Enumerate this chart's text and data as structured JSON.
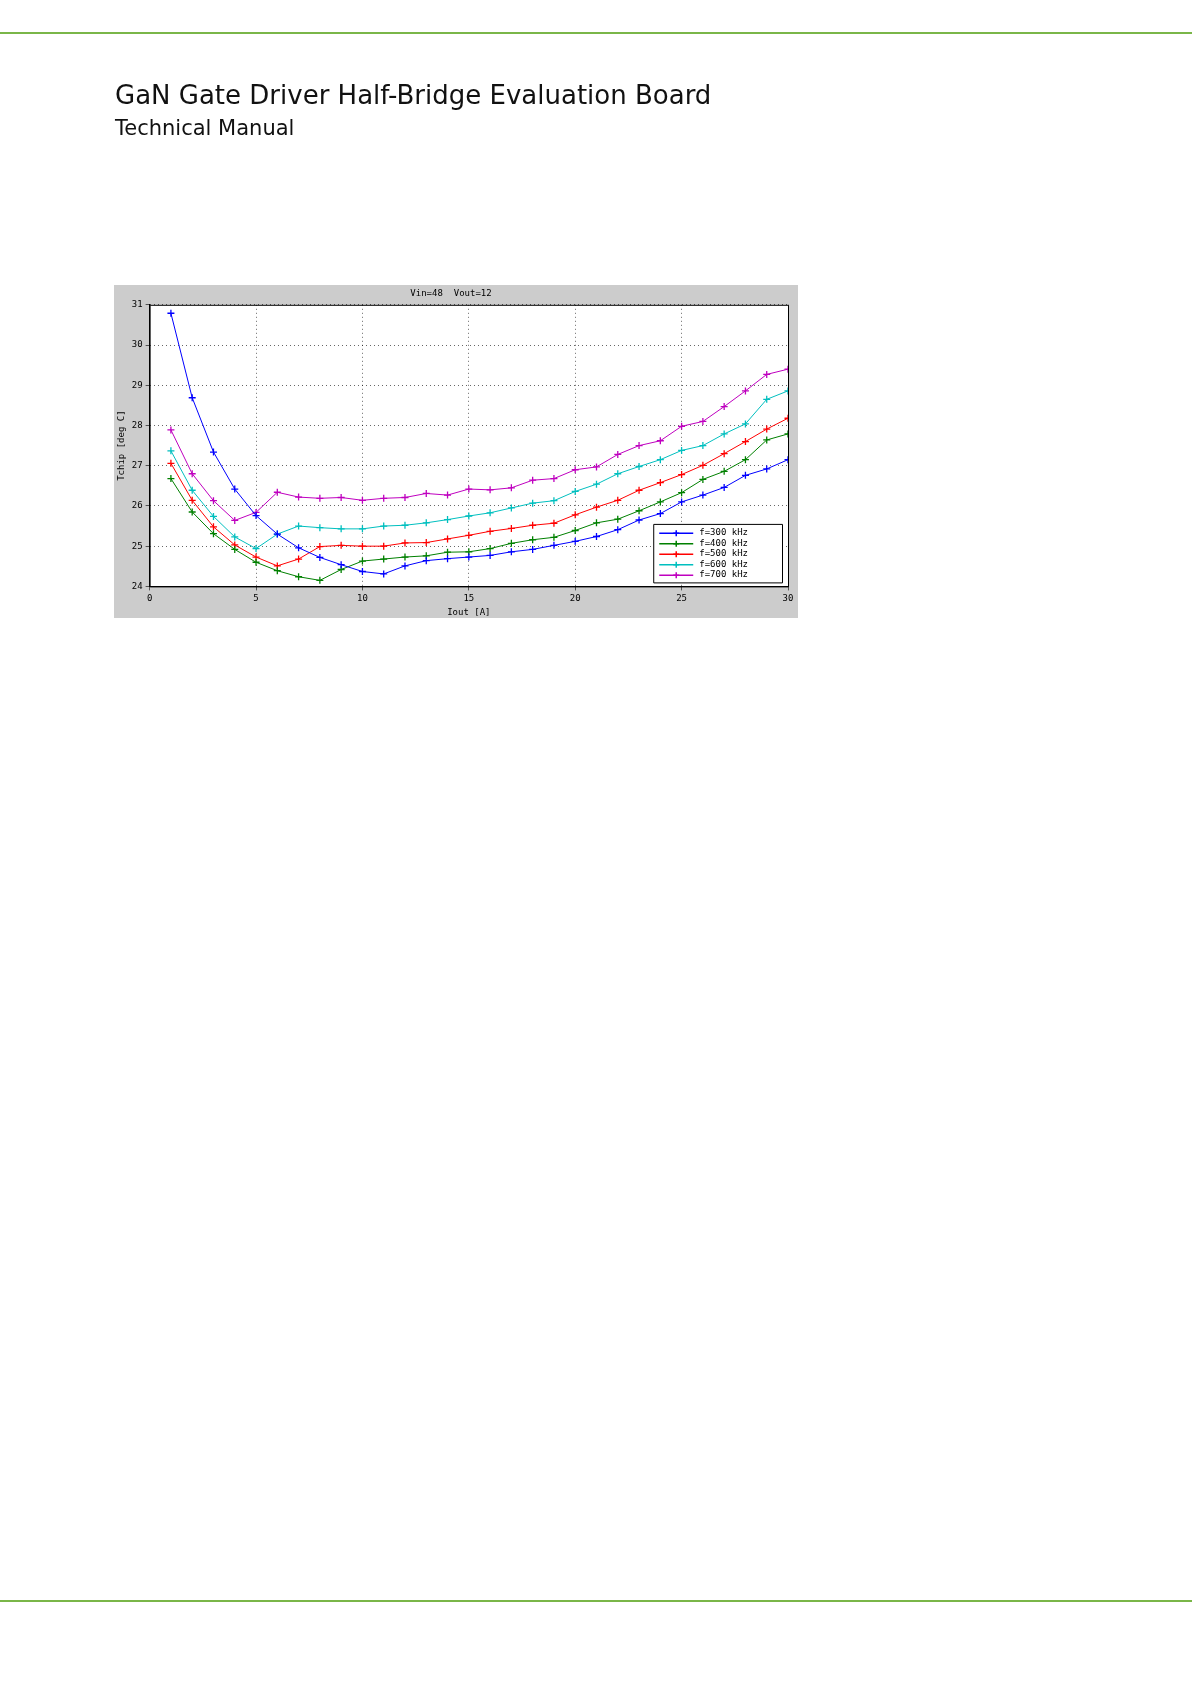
{
  "chart_data": {
    "type": "line",
    "title": "Vin=48  Vout=12",
    "xlabel": "Iout [A]",
    "ylabel": "Tchip [deg C]",
    "annotations": [
      "GaN Gate Driver Half-Bridge Evaluation Board",
      "Technical Manual"
    ],
    "x": [
      1,
      2,
      3,
      4,
      5,
      6,
      7,
      8,
      9,
      10,
      11,
      12,
      13,
      14,
      15,
      16,
      17,
      18,
      19,
      20,
      21,
      22,
      23,
      24,
      25,
      26,
      27,
      28,
      29,
      30
    ],
    "series": [
      {
        "name": "f=300 kHz",
        "color": "#0000ff",
        "values": [
          30.79,
          28.69,
          27.34,
          26.42,
          25.76,
          25.3,
          24.96,
          24.72,
          24.54,
          24.37,
          24.31,
          24.51,
          24.64,
          24.69,
          24.73,
          24.77,
          24.86,
          24.92,
          25.02,
          25.12,
          25.24,
          25.41,
          25.65,
          25.81,
          26.1,
          26.27,
          26.46,
          26.76,
          26.92,
          27.15
        ]
      },
      {
        "name": "f=400 kHz",
        "color": "#008000",
        "values": [
          26.68,
          25.85,
          25.31,
          24.92,
          24.6,
          24.39,
          24.24,
          24.15,
          24.42,
          24.63,
          24.68,
          24.73,
          24.76,
          24.85,
          24.86,
          24.94,
          25.07,
          25.16,
          25.22,
          25.39,
          25.58,
          25.67,
          25.88,
          26.1,
          26.33,
          26.66,
          26.86,
          27.15,
          27.64,
          27.79
        ]
      },
      {
        "name": "f=500 kHz",
        "color": "#ff0000",
        "values": [
          27.06,
          26.14,
          25.48,
          25.03,
          24.73,
          24.51,
          24.68,
          24.99,
          25.02,
          25.0,
          25.0,
          25.08,
          25.09,
          25.18,
          25.27,
          25.37,
          25.44,
          25.52,
          25.57,
          25.78,
          25.97,
          26.14,
          26.39,
          26.58,
          26.78,
          27.01,
          27.3,
          27.6,
          27.91,
          28.18
        ]
      },
      {
        "name": "f=600 kHz",
        "color": "#00bfbf",
        "values": [
          27.37,
          26.39,
          25.74,
          25.23,
          24.94,
          25.3,
          25.5,
          25.46,
          25.43,
          25.43,
          25.5,
          25.52,
          25.58,
          25.66,
          25.75,
          25.83,
          25.95,
          26.07,
          26.13,
          26.36,
          26.54,
          26.8,
          26.98,
          27.15,
          27.38,
          27.5,
          27.79,
          28.04,
          28.65,
          28.86
        ]
      },
      {
        "name": "f=700 kHz",
        "color": "#bf00bf",
        "values": [
          27.89,
          26.8,
          26.13,
          25.64,
          25.84,
          26.34,
          26.22,
          26.19,
          26.21,
          26.14,
          26.19,
          26.21,
          26.31,
          26.27,
          26.42,
          26.4,
          26.45,
          26.64,
          26.68,
          26.9,
          26.97,
          27.28,
          27.5,
          27.62,
          27.98,
          28.1,
          28.47,
          28.86,
          29.27,
          29.4
        ]
      }
    ],
    "xlim": [
      0,
      30
    ],
    "xticks": [
      0,
      5,
      10,
      15,
      20,
      25,
      30
    ],
    "ylim": [
      24,
      31
    ],
    "yticks": [
      24,
      25,
      26,
      27,
      28,
      29,
      30,
      31
    ],
    "grid": true,
    "legend": "bottom right",
    "marker": "cross",
    "line_style": "solid"
  }
}
